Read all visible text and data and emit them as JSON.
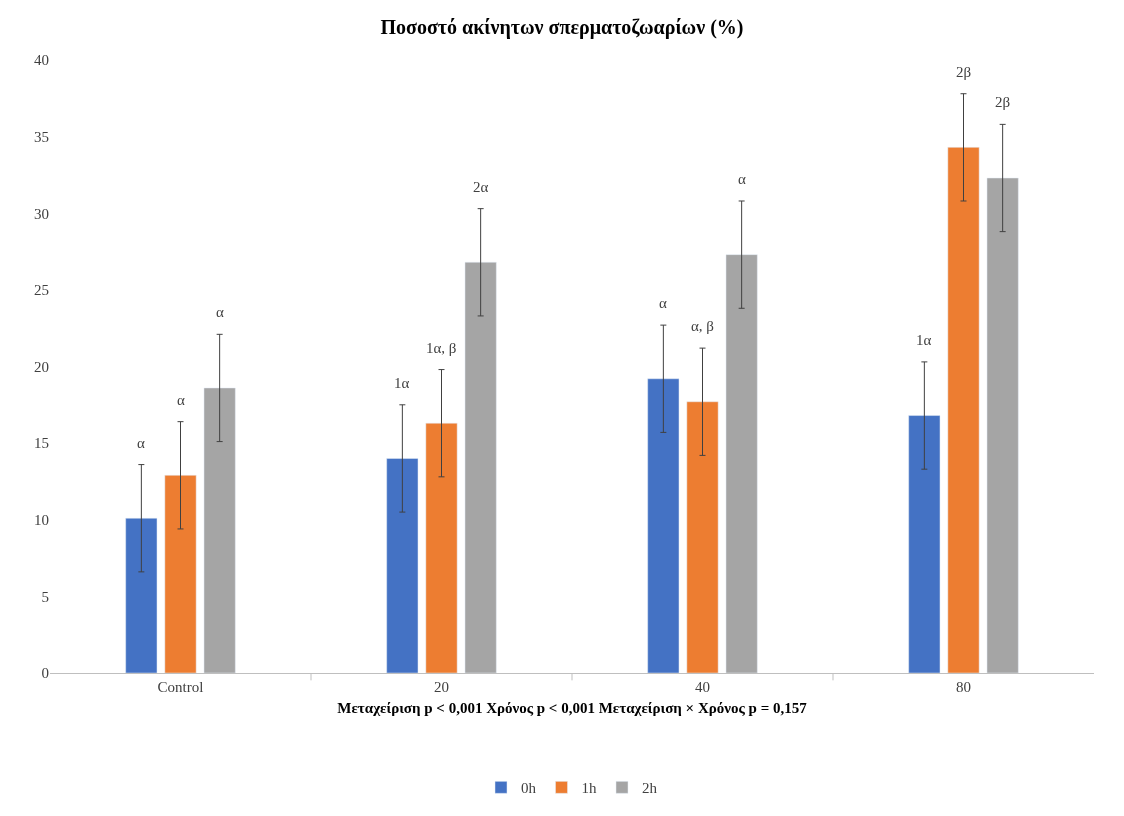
{
  "chart_data": {
    "type": "bar",
    "title": "Ποσοστό ακίνητων σπερματοζωαρίων (%)",
    "xlabel": "Μεταχείριση p < 0,001 Χρόνος p < 0,001 Μεταχείριση × Χρόνος p = 0,157",
    "categories": [
      "Control",
      "20",
      "40",
      "80"
    ],
    "series": [
      {
        "name": "0h",
        "color": "#4472c4",
        "values": [
          10.1,
          14.0,
          19.2,
          16.8
        ],
        "errors": [
          3.5,
          3.5,
          3.5,
          3.5
        ]
      },
      {
        "name": "1h",
        "color": "#ed7d31",
        "values": [
          12.9,
          16.3,
          17.7,
          34.3
        ],
        "errors": [
          3.5,
          3.5,
          3.5,
          3.5
        ]
      },
      {
        "name": "2h",
        "color": "#a5a5a5",
        "values": [
          18.6,
          26.8,
          27.3,
          32.3
        ],
        "errors": [
          3.5,
          3.5,
          3.5,
          3.5
        ]
      }
    ],
    "annotations": [
      "α",
      "α",
      "α",
      "1α",
      "1α, β",
      "2α",
      "α",
      "α, β",
      "α",
      "1α",
      "2β",
      "2β"
    ],
    "ylim": [
      0,
      40
    ],
    "yticks": [
      0,
      5,
      10,
      15,
      20,
      25,
      30,
      35,
      40
    ],
    "grid": false,
    "legend": "bottom"
  }
}
